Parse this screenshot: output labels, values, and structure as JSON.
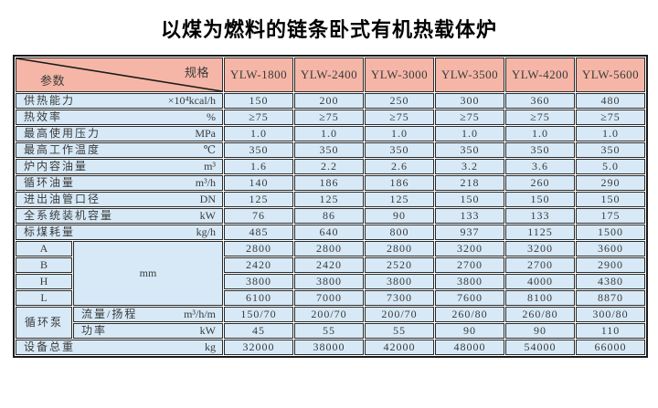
{
  "title": "以煤为燃料的链条卧式有机热载体炉",
  "colors": {
    "header_bg": "#f5b6a7",
    "cell_bg": "#d7e9f7",
    "border": "#2b2b2b",
    "diagonal_line": "#1b1b1b"
  },
  "table": {
    "corner": {
      "top_right": "规格",
      "bottom_left": "参数"
    },
    "models": [
      "YLW-1800",
      "YLW-2400",
      "YLW-3000",
      "YLW-3500",
      "YLW-4200",
      "YLW-5600"
    ],
    "rows": [
      {
        "label": "供热能力",
        "unit": "×10⁴kcal/h",
        "values": [
          "150",
          "200",
          "250",
          "300",
          "360",
          "480"
        ]
      },
      {
        "label": "热效率",
        "unit": "%",
        "values": [
          "≥75",
          "≥75",
          "≥75",
          "≥75",
          "≥75",
          "≥75"
        ]
      },
      {
        "label": "最高使用压力",
        "unit": "MPa",
        "values": [
          "1.0",
          "1.0",
          "1.0",
          "1.0",
          "1.0",
          "1.0"
        ]
      },
      {
        "label": "最高工作温度",
        "unit": "℃",
        "values": [
          "350",
          "350",
          "350",
          "350",
          "350",
          "350"
        ]
      },
      {
        "label": "炉内容油量",
        "unit": "m³",
        "values": [
          "1.6",
          "2.2",
          "2.6",
          "3.2",
          "3.6",
          "5.0"
        ]
      },
      {
        "label": "循环油量",
        "unit": "m³/h",
        "values": [
          "140",
          "186",
          "186",
          "218",
          "260",
          "290"
        ]
      },
      {
        "label": "进出油管口径",
        "unit": "DN",
        "values": [
          "125",
          "125",
          "125",
          "150",
          "150",
          "150"
        ]
      },
      {
        "label": "全系统装机容量",
        "unit": "kW",
        "values": [
          "76",
          "86",
          "90",
          "133",
          "133",
          "175"
        ]
      },
      {
        "label": "标煤耗量",
        "unit": "kg/h",
        "values": [
          "485",
          "640",
          "800",
          "937",
          "1125",
          "1500"
        ]
      }
    ],
    "dimensions": {
      "unit": "mm",
      "rows": [
        {
          "label": "A",
          "values": [
            "2800",
            "2800",
            "2800",
            "3200",
            "3200",
            "3600"
          ]
        },
        {
          "label": "B",
          "values": [
            "2420",
            "2420",
            "2520",
            "2700",
            "2700",
            "2900"
          ]
        },
        {
          "label": "H",
          "values": [
            "3800",
            "3800",
            "3800",
            "3800",
            "4000",
            "4380"
          ]
        },
        {
          "label": "L",
          "values": [
            "6100",
            "7000",
            "7300",
            "7600",
            "8100",
            "8870"
          ]
        }
      ]
    },
    "pump": {
      "label": "循环泵",
      "rows": [
        {
          "label": "流量/扬程",
          "unit": "m³/h/m",
          "values": [
            "150/70",
            "200/70",
            "200/70",
            "260/80",
            "260/80",
            "300/80"
          ]
        },
        {
          "label": "功率",
          "unit": "kW",
          "values": [
            "45",
            "55",
            "55",
            "90",
            "90",
            "110"
          ]
        }
      ]
    },
    "total": {
      "label": "设备总重",
      "unit": "kg",
      "values": [
        "32000",
        "38000",
        "42000",
        "48000",
        "54000",
        "66000"
      ]
    }
  }
}
